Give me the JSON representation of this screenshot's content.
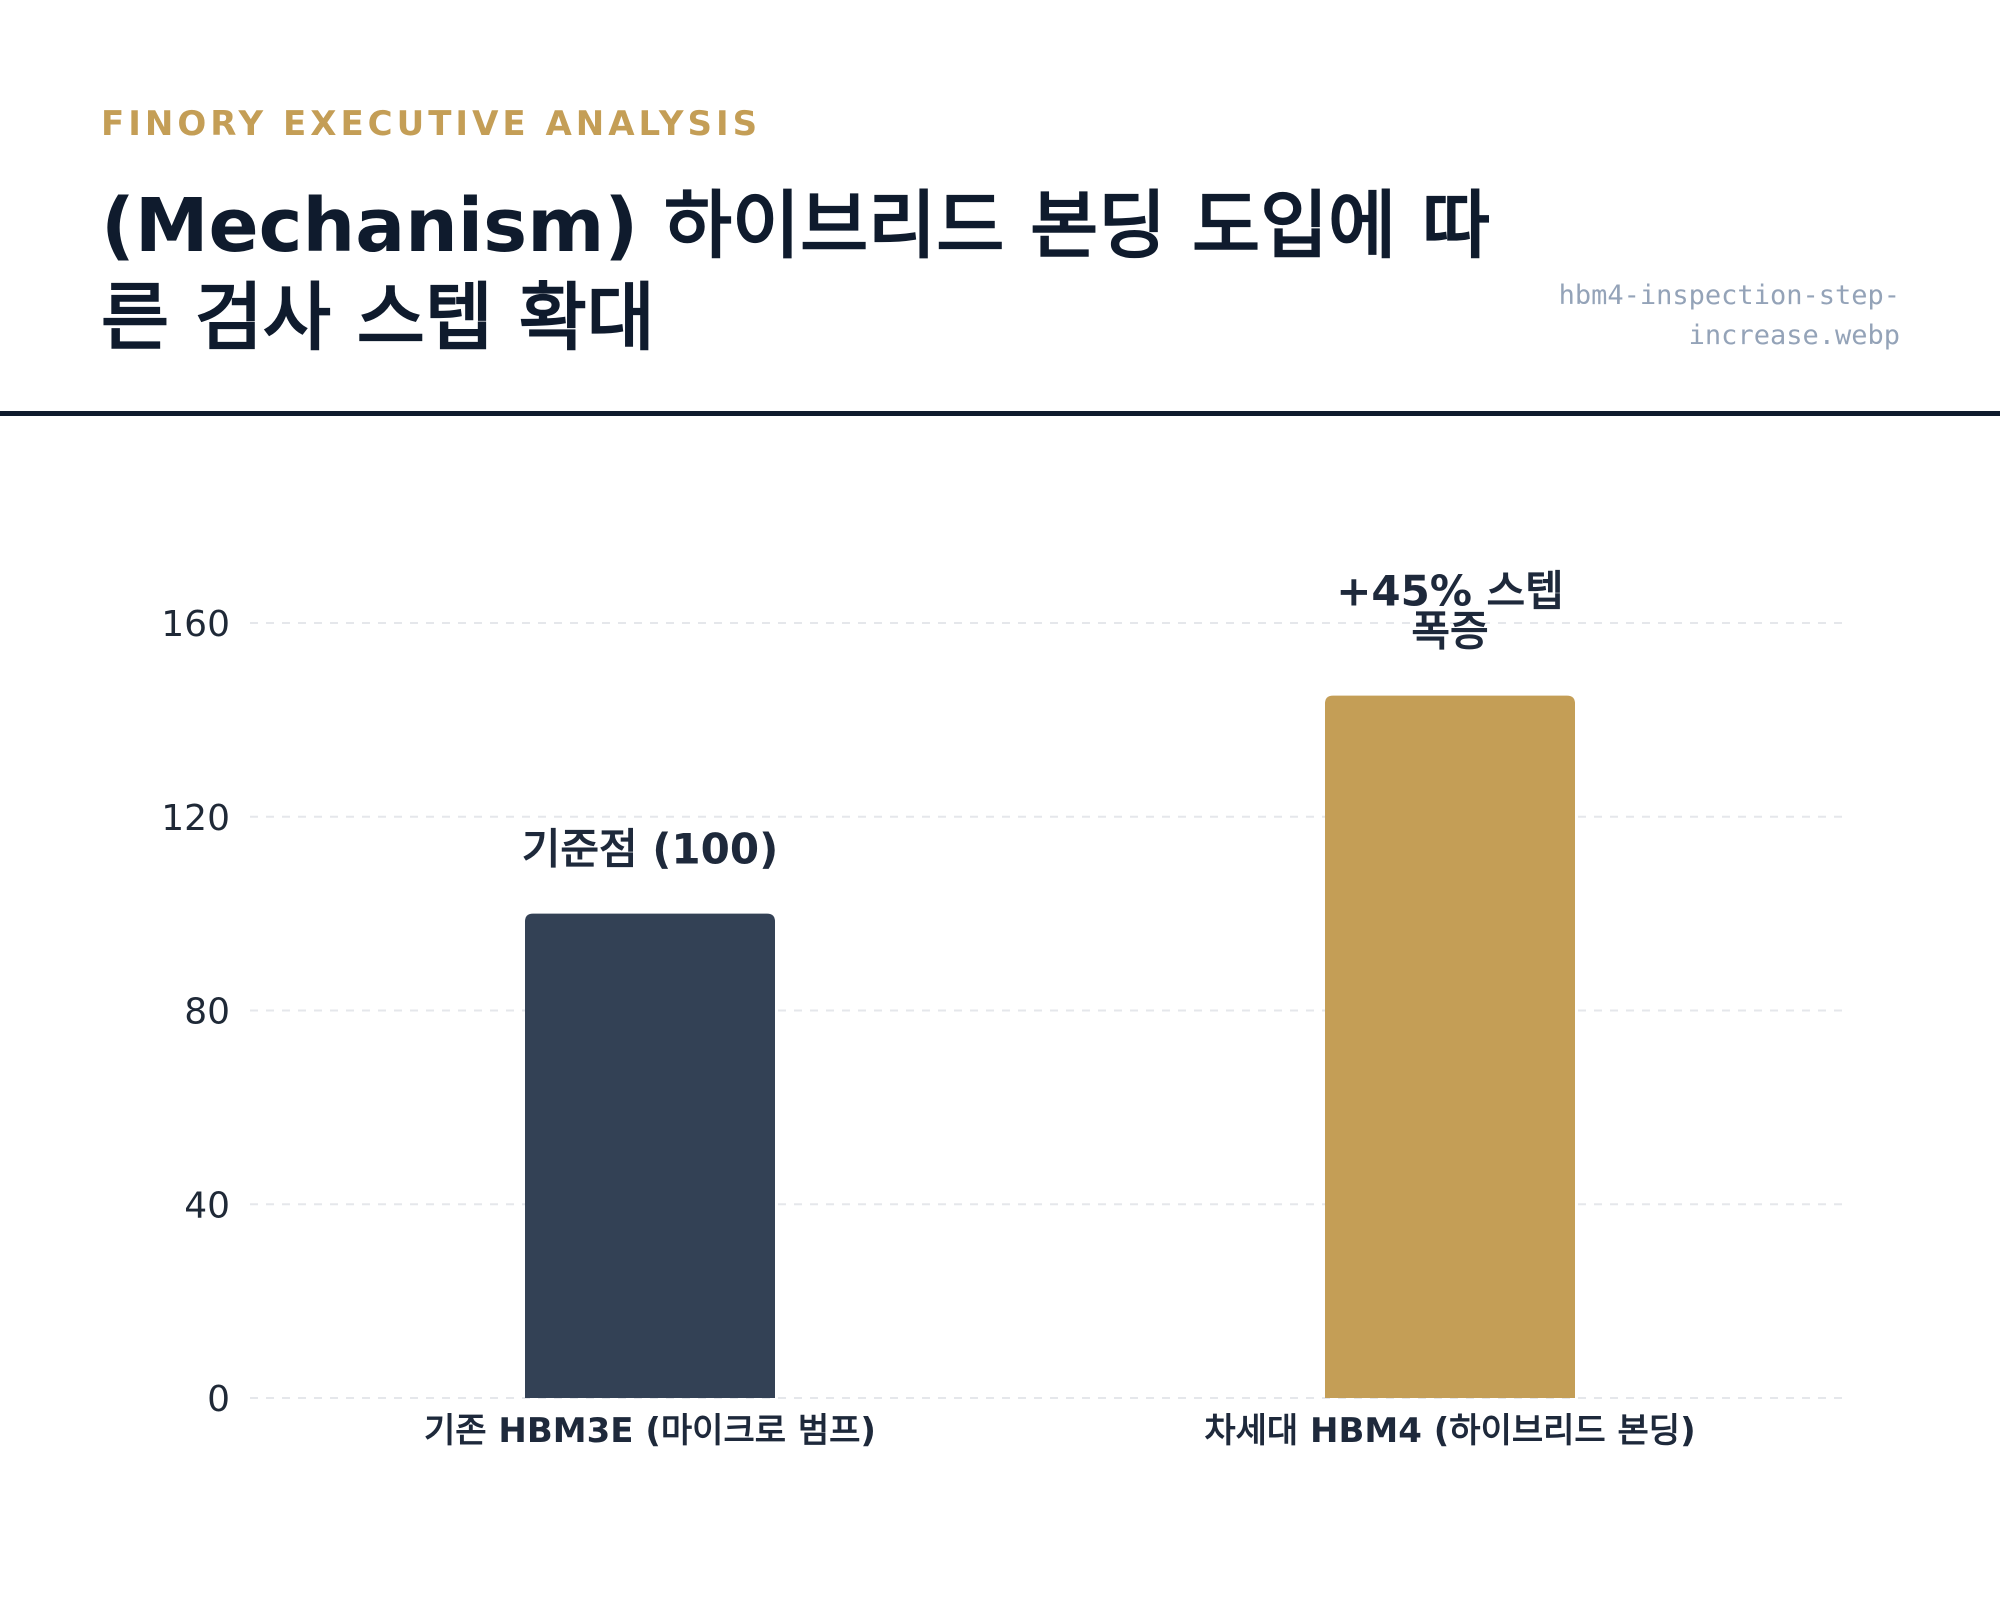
{
  "header": {
    "eyebrow": "FINORY EXECUTIVE ANALYSIS",
    "title": "(Mechanism) 하이브리드 본딩 도입에 따른 검사 스텝 확대",
    "filename": "hbm4-inspection-step-increase.webp"
  },
  "chart_data": {
    "type": "bar",
    "categories": [
      "기존 HBM3E (마이크로 범프)",
      "차세대 HBM4 (하이브리드 본딩)"
    ],
    "values": [
      100,
      145
    ],
    "colors": [
      "#334155",
      "#c49e56"
    ],
    "data_labels": [
      [
        "기준점 (100)"
      ],
      [
        "+45% 스텝",
        "폭증"
      ]
    ],
    "yticks": [
      0,
      40,
      80,
      120,
      160
    ],
    "ylim": [
      0,
      160
    ],
    "grid": true
  }
}
